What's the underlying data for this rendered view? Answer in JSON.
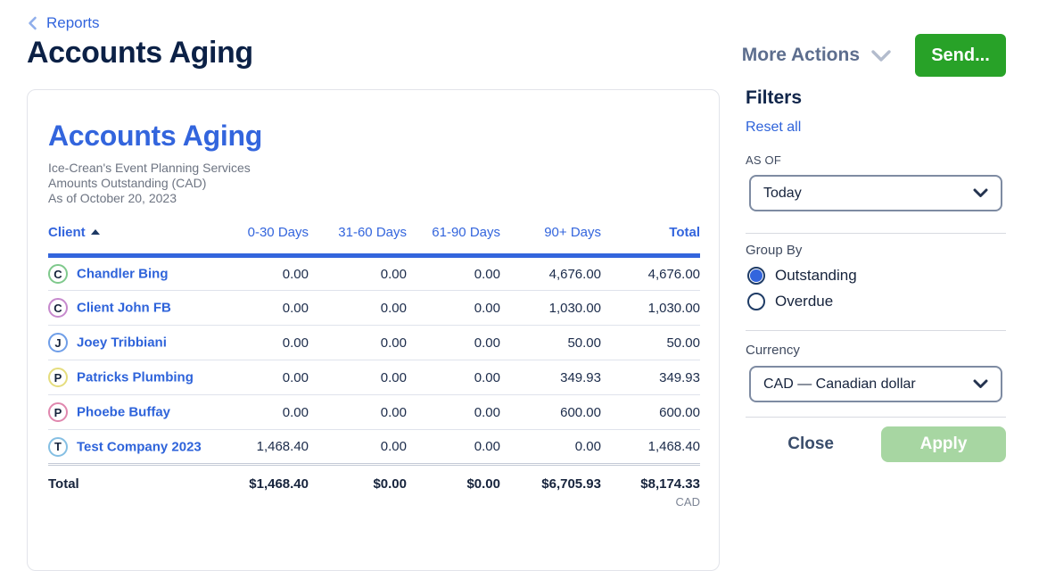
{
  "page": {
    "breadcrumb": "Reports",
    "title": "Accounts Aging"
  },
  "toolbar": {
    "more_actions_label": "More Actions",
    "send_label": "Send..."
  },
  "colors": {
    "accent_blue": "#3365dd",
    "brand_green": "#28a228",
    "apply_disabled_green": "#a7d6a2",
    "title_navy": "#0c2146"
  },
  "report": {
    "heading": "Accounts Aging",
    "company": "Ice-Crean's Event Planning Services",
    "subtitle": "Amounts Outstanding (CAD)",
    "as_of_line": "As of October 20, 2023",
    "columns": [
      "Client",
      "0-30 Days",
      "31-60 Days",
      "61-90 Days",
      "90+ Days",
      "Total"
    ],
    "sort_column": "Client",
    "sort_direction": "asc",
    "rows": [
      {
        "initial": "C",
        "ring_color": "#7fc98c",
        "client": "Chandler Bing",
        "values": [
          "0.00",
          "0.00",
          "0.00",
          "4,676.00",
          "4,676.00"
        ],
        "link_index": 3
      },
      {
        "initial": "C",
        "ring_color": "#c689cd",
        "client": "Client John FB",
        "values": [
          "0.00",
          "0.00",
          "0.00",
          "1,030.00",
          "1,030.00"
        ],
        "link_index": 3
      },
      {
        "initial": "J",
        "ring_color": "#6f9ee8",
        "client": "Joey Tribbiani",
        "values": [
          "0.00",
          "0.00",
          "0.00",
          "50.00",
          "50.00"
        ],
        "link_index": 3
      },
      {
        "initial": "P",
        "ring_color": "#e5dd7d",
        "client": "Patricks Plumbing",
        "values": [
          "0.00",
          "0.00",
          "0.00",
          "349.93",
          "349.93"
        ],
        "link_index": 3
      },
      {
        "initial": "P",
        "ring_color": "#e087ae",
        "client": "Phoebe Buffay",
        "values": [
          "0.00",
          "0.00",
          "0.00",
          "600.00",
          "600.00"
        ],
        "link_index": 3
      },
      {
        "initial": "T",
        "ring_color": "#85bfe3",
        "client": "Test Company 2023",
        "values": [
          "1,468.40",
          "0.00",
          "0.00",
          "0.00",
          "1,468.40"
        ],
        "link_index": 0
      }
    ],
    "totals": {
      "label": "Total",
      "values": [
        "$1,468.40",
        "$0.00",
        "$0.00",
        "$6,705.93",
        "$8,174.33"
      ],
      "currency": "CAD"
    }
  },
  "filters": {
    "heading": "Filters",
    "reset_label": "Reset all",
    "as_of": {
      "label": "AS OF",
      "value": "Today"
    },
    "group_by": {
      "label": "Group By",
      "options": [
        {
          "label": "Outstanding",
          "selected": true
        },
        {
          "label": "Overdue",
          "selected": false
        }
      ]
    },
    "currency": {
      "label": "Currency",
      "value": "CAD — Canadian dollar"
    },
    "close_label": "Close",
    "apply_label": "Apply"
  }
}
